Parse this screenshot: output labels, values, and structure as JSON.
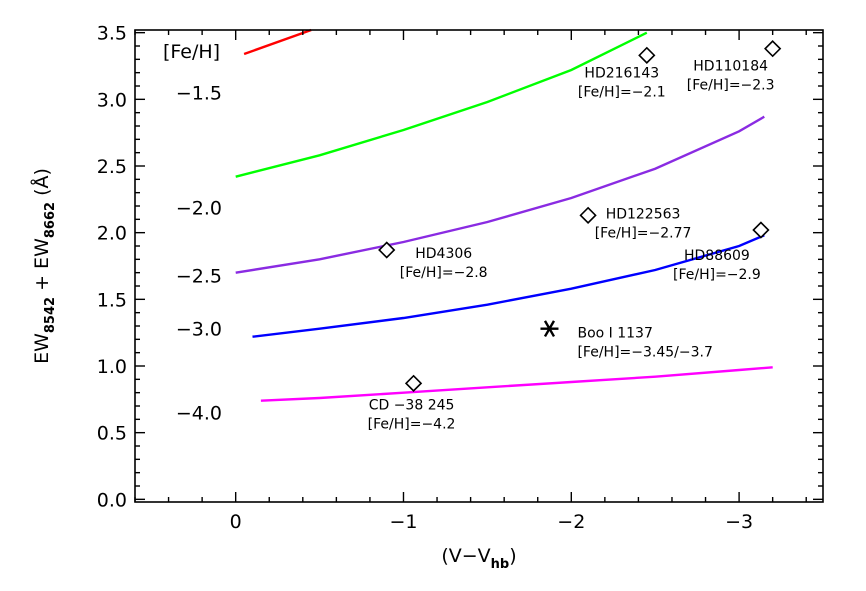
{
  "chart_data": {
    "type": "line",
    "title": "",
    "xlabel": {
      "main": "(V−V",
      "sub": "hb",
      "close": ")"
    },
    "ylabel": {
      "part1": "EW",
      "sub1": "8542",
      "plus": " + EW",
      "sub2": "8662",
      "unit": " (Å)"
    },
    "xlim": [
      0.6,
      -3.5
    ],
    "ylim": [
      -0.02,
      3.52
    ],
    "x_ticks": [
      0,
      -1,
      -2,
      -3
    ],
    "x_tick_labels": [
      "0",
      "−1",
      "−2",
      "−3"
    ],
    "y_ticks": [
      0.0,
      0.5,
      1.0,
      1.5,
      2.0,
      2.5,
      3.0,
      3.5
    ],
    "y_tick_labels": [
      "0.0",
      "0.5",
      "1.0",
      "1.5",
      "2.0",
      "2.5",
      "3.0",
      "3.5"
    ],
    "series": [
      {
        "name": "−1.5",
        "color": "#ff0000",
        "x": [
          -0.05,
          -0.45
        ],
        "y": [
          3.34,
          3.52
        ]
      },
      {
        "name": "−2.0",
        "color": "#00ff00",
        "x": [
          0.0,
          -0.5,
          -1.0,
          -1.5,
          -2.0,
          -2.45
        ],
        "y": [
          2.42,
          2.58,
          2.77,
          2.98,
          3.22,
          3.5
        ]
      },
      {
        "name": "−2.5",
        "color": "#8a2be2",
        "x": [
          0.0,
          -0.5,
          -1.0,
          -1.5,
          -2.0,
          -2.5,
          -3.0,
          -3.15
        ],
        "y": [
          1.7,
          1.8,
          1.93,
          2.08,
          2.26,
          2.48,
          2.76,
          2.87
        ]
      },
      {
        "name": "−3.0",
        "color": "#0000ff",
        "x": [
          -0.1,
          -0.5,
          -1.0,
          -1.5,
          -2.0,
          -2.5,
          -3.0,
          -3.15
        ],
        "y": [
          1.22,
          1.28,
          1.36,
          1.46,
          1.58,
          1.72,
          1.9,
          1.98
        ]
      },
      {
        "name": "−4.0",
        "color": "#ff00ff",
        "x": [
          -0.15,
          -0.5,
          -1.0,
          -1.5,
          -2.0,
          -2.5,
          -3.0,
          -3.2
        ],
        "y": [
          0.74,
          0.76,
          0.8,
          0.84,
          0.88,
          0.92,
          0.97,
          0.99
        ]
      }
    ],
    "feh_header": "[Fe/H]",
    "feh_labels": [
      {
        "text": "−1.5",
        "y": 3.05
      },
      {
        "text": "−2.0",
        "y": 2.19
      },
      {
        "text": "−2.5",
        "y": 1.68
      },
      {
        "text": "−3.0",
        "y": 1.28
      },
      {
        "text": "−4.0",
        "y": 0.65
      }
    ],
    "stars": [
      {
        "name": "HD216143",
        "feh": "[Fe/H]=−2.1",
        "x": -2.45,
        "y": 3.33,
        "marker": "diamond"
      },
      {
        "name": "HD110184",
        "feh": "[Fe/H]=−2.3",
        "x": -3.2,
        "y": 3.38,
        "marker": "diamond"
      },
      {
        "name": "HD122563",
        "feh": "[Fe/H]=−2.77",
        "x": -2.1,
        "y": 2.13,
        "marker": "diamond"
      },
      {
        "name": "HD4306",
        "feh": "[Fe/H]=−2.8",
        "x": -0.9,
        "y": 1.87,
        "marker": "diamond"
      },
      {
        "name": "HD88609",
        "feh": "[Fe/H]=−2.9",
        "x": -3.13,
        "y": 2.02,
        "marker": "diamond"
      },
      {
        "name": "Boo I 1137",
        "feh": "[Fe/H]=−3.45/−3.7",
        "x": -1.87,
        "y": 1.28,
        "marker": "asterisk"
      },
      {
        "name": "CD −38 245",
        "feh": "[Fe/H]=−4.2",
        "x": -1.06,
        "y": 0.87,
        "marker": "diamond"
      }
    ]
  }
}
